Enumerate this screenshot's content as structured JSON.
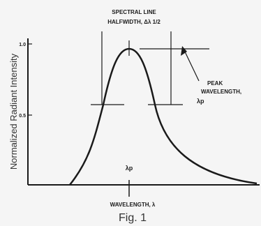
{
  "chart": {
    "y_axis_label": "Normalized Radiant Intensity",
    "y_tick_top": "1.0",
    "y_tick_mid": "0.5",
    "halfwidth_line1": "SPECTRAL LINE",
    "halfwidth_line2": "HALFWIDTH, Δλ 1/2",
    "peak_line1": "PEAK",
    "peak_line2": "WAVELENGTH,",
    "peak_symbol": "λp",
    "peak_axis_symbol": "λp",
    "x_axis_label": "WAVELENGTH, λ"
  },
  "caption": "Fig. 1",
  "colors": {
    "ink": "#1a1a1a",
    "background": "#f5f5f5"
  }
}
